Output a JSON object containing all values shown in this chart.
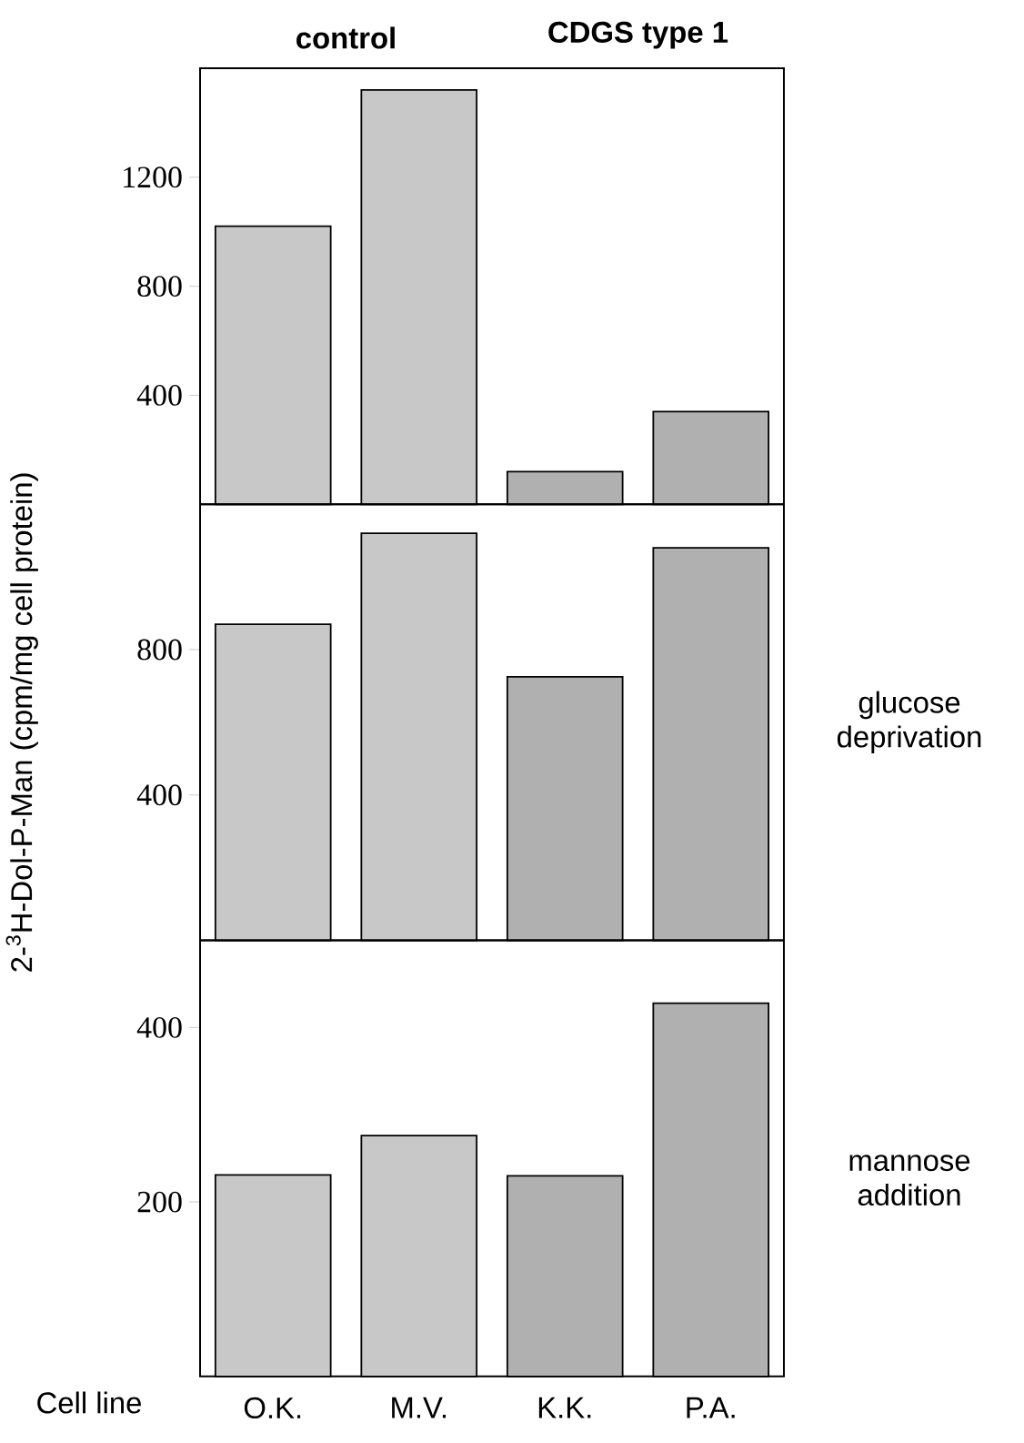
{
  "chart_data": [
    {
      "type": "bar",
      "categories": [
        null,
        null,
        null,
        null
      ],
      "values": [
        1020,
        1520,
        120,
        340
      ],
      "colors": [
        "#c8c8c8",
        "#c8c8c8",
        "#b0b0b0",
        "#b0b0b0"
      ],
      "ylim": [
        0,
        1600
      ],
      "yticks": [
        400,
        800,
        1200
      ],
      "tick_labels": "y",
      "annotations": [
        "control",
        "CDGS type 1"
      ]
    },
    {
      "type": "bar",
      "categories": [
        null,
        null,
        null,
        null
      ],
      "values": [
        870,
        1120,
        725,
        1080
      ],
      "colors": [
        "#c8c8c8",
        "#c8c8c8",
        "#b0b0b0",
        "#b0b0b0"
      ],
      "ylim": [
        0,
        1200
      ],
      "yticks": [
        400,
        800
      ],
      "tick_labels": "y",
      "ylabel": "2-$^{3}$H-Dol-P-Man (cpm/mg cell protein)",
      "annotations": [
        "glucose deprivation"
      ]
    },
    {
      "type": "bar",
      "categories": [
        "O.K.",
        "M.V.",
        "K.K.",
        "P.A."
      ],
      "values": [
        231,
        276,
        230,
        428
      ],
      "colors": [
        "#c8c8c8",
        "#c8c8c8",
        "#b0b0b0",
        "#b0b0b0"
      ],
      "ylim": [
        0,
        500
      ],
      "yticks": [
        200,
        400
      ],
      "xlabel": "Cell line",
      "annotations": [
        "mannose addition"
      ]
    }
  ]
}
